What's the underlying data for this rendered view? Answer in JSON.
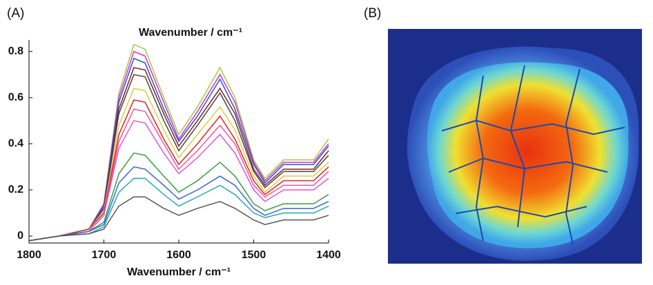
{
  "chart_data": {
    "type": "line",
    "panel_label": "(A)",
    "title": "Wavenumber / cm⁻¹",
    "x_label": "Wavenumber / cm⁻¹",
    "x": [
      1800,
      1760,
      1720,
      1700,
      1680,
      1660,
      1645,
      1620,
      1600,
      1575,
      1545,
      1525,
      1500,
      1485,
      1460,
      1420,
      1400
    ],
    "xlim": [
      1800,
      1400
    ],
    "xticks": [
      1800,
      1700,
      1600,
      1500,
      1400
    ],
    "ylim": [
      -0.03,
      0.85
    ],
    "yticks": [
      0,
      0.2,
      0.4,
      0.6,
      0.8
    ],
    "series": [
      {
        "color": "#a8c83c",
        "values": [
          -0.02,
          0,
          0.03,
          0.14,
          0.62,
          0.83,
          0.81,
          0.6,
          0.44,
          0.56,
          0.73,
          0.6,
          0.33,
          0.25,
          0.33,
          0.33,
          0.42
        ]
      },
      {
        "color": "#cc33cc",
        "values": [
          -0.02,
          0,
          0.03,
          0.14,
          0.6,
          0.8,
          0.78,
          0.58,
          0.42,
          0.54,
          0.7,
          0.58,
          0.32,
          0.24,
          0.32,
          0.32,
          0.4
        ]
      },
      {
        "color": "#2255cc",
        "values": [
          -0.02,
          0,
          0.03,
          0.13,
          0.58,
          0.77,
          0.75,
          0.55,
          0.41,
          0.52,
          0.68,
          0.55,
          0.31,
          0.23,
          0.31,
          0.31,
          0.39
        ]
      },
      {
        "color": "#8b1a1a",
        "values": [
          -0.02,
          0,
          0.03,
          0.12,
          0.55,
          0.73,
          0.72,
          0.53,
          0.39,
          0.5,
          0.64,
          0.53,
          0.29,
          0.22,
          0.29,
          0.29,
          0.37
        ]
      },
      {
        "color": "#444444",
        "values": [
          -0.02,
          0,
          0.03,
          0.12,
          0.53,
          0.7,
          0.69,
          0.5,
          0.37,
          0.48,
          0.62,
          0.5,
          0.28,
          0.21,
          0.28,
          0.28,
          0.35
        ]
      },
      {
        "color": "#d8d040",
        "values": [
          -0.02,
          0,
          0.03,
          0.11,
          0.48,
          0.64,
          0.63,
          0.46,
          0.34,
          0.44,
          0.56,
          0.46,
          0.26,
          0.19,
          0.26,
          0.26,
          0.32
        ]
      },
      {
        "color": "#e02020",
        "values": [
          -0.02,
          0,
          0.03,
          0.1,
          0.44,
          0.59,
          0.58,
          0.42,
          0.31,
          0.4,
          0.52,
          0.42,
          0.24,
          0.18,
          0.24,
          0.24,
          0.3
        ]
      },
      {
        "color": "#ee5599",
        "values": [
          -0.02,
          0,
          0.02,
          0.09,
          0.41,
          0.55,
          0.54,
          0.4,
          0.29,
          0.37,
          0.48,
          0.4,
          0.22,
          0.17,
          0.22,
          0.22,
          0.28
        ]
      },
      {
        "color": "#dd55dd",
        "values": [
          -0.02,
          0,
          0.02,
          0.09,
          0.38,
          0.5,
          0.49,
          0.36,
          0.27,
          0.34,
          0.44,
          0.36,
          0.2,
          0.15,
          0.2,
          0.2,
          0.25
        ]
      },
      {
        "color": "#33a040",
        "values": [
          -0.02,
          0,
          0.02,
          0.06,
          0.27,
          0.36,
          0.35,
          0.26,
          0.19,
          0.24,
          0.32,
          0.26,
          0.14,
          0.11,
          0.14,
          0.14,
          0.18
        ]
      },
      {
        "color": "#3366dd",
        "values": [
          -0.02,
          0,
          0.02,
          0.05,
          0.23,
          0.3,
          0.29,
          0.22,
          0.16,
          0.2,
          0.26,
          0.22,
          0.12,
          0.09,
          0.12,
          0.12,
          0.15
        ]
      },
      {
        "color": "#22aaaa",
        "values": [
          -0.02,
          0,
          0.01,
          0.04,
          0.19,
          0.25,
          0.25,
          0.18,
          0.13,
          0.17,
          0.22,
          0.18,
          0.1,
          0.08,
          0.1,
          0.1,
          0.13
        ]
      },
      {
        "color": "#555555",
        "values": [
          -0.02,
          0,
          0.01,
          0.03,
          0.13,
          0.17,
          0.17,
          0.12,
          0.09,
          0.12,
          0.15,
          0.12,
          0.07,
          0.05,
          0.07,
          0.07,
          0.09
        ]
      }
    ]
  },
  "image_panel": {
    "label": "(B)"
  }
}
